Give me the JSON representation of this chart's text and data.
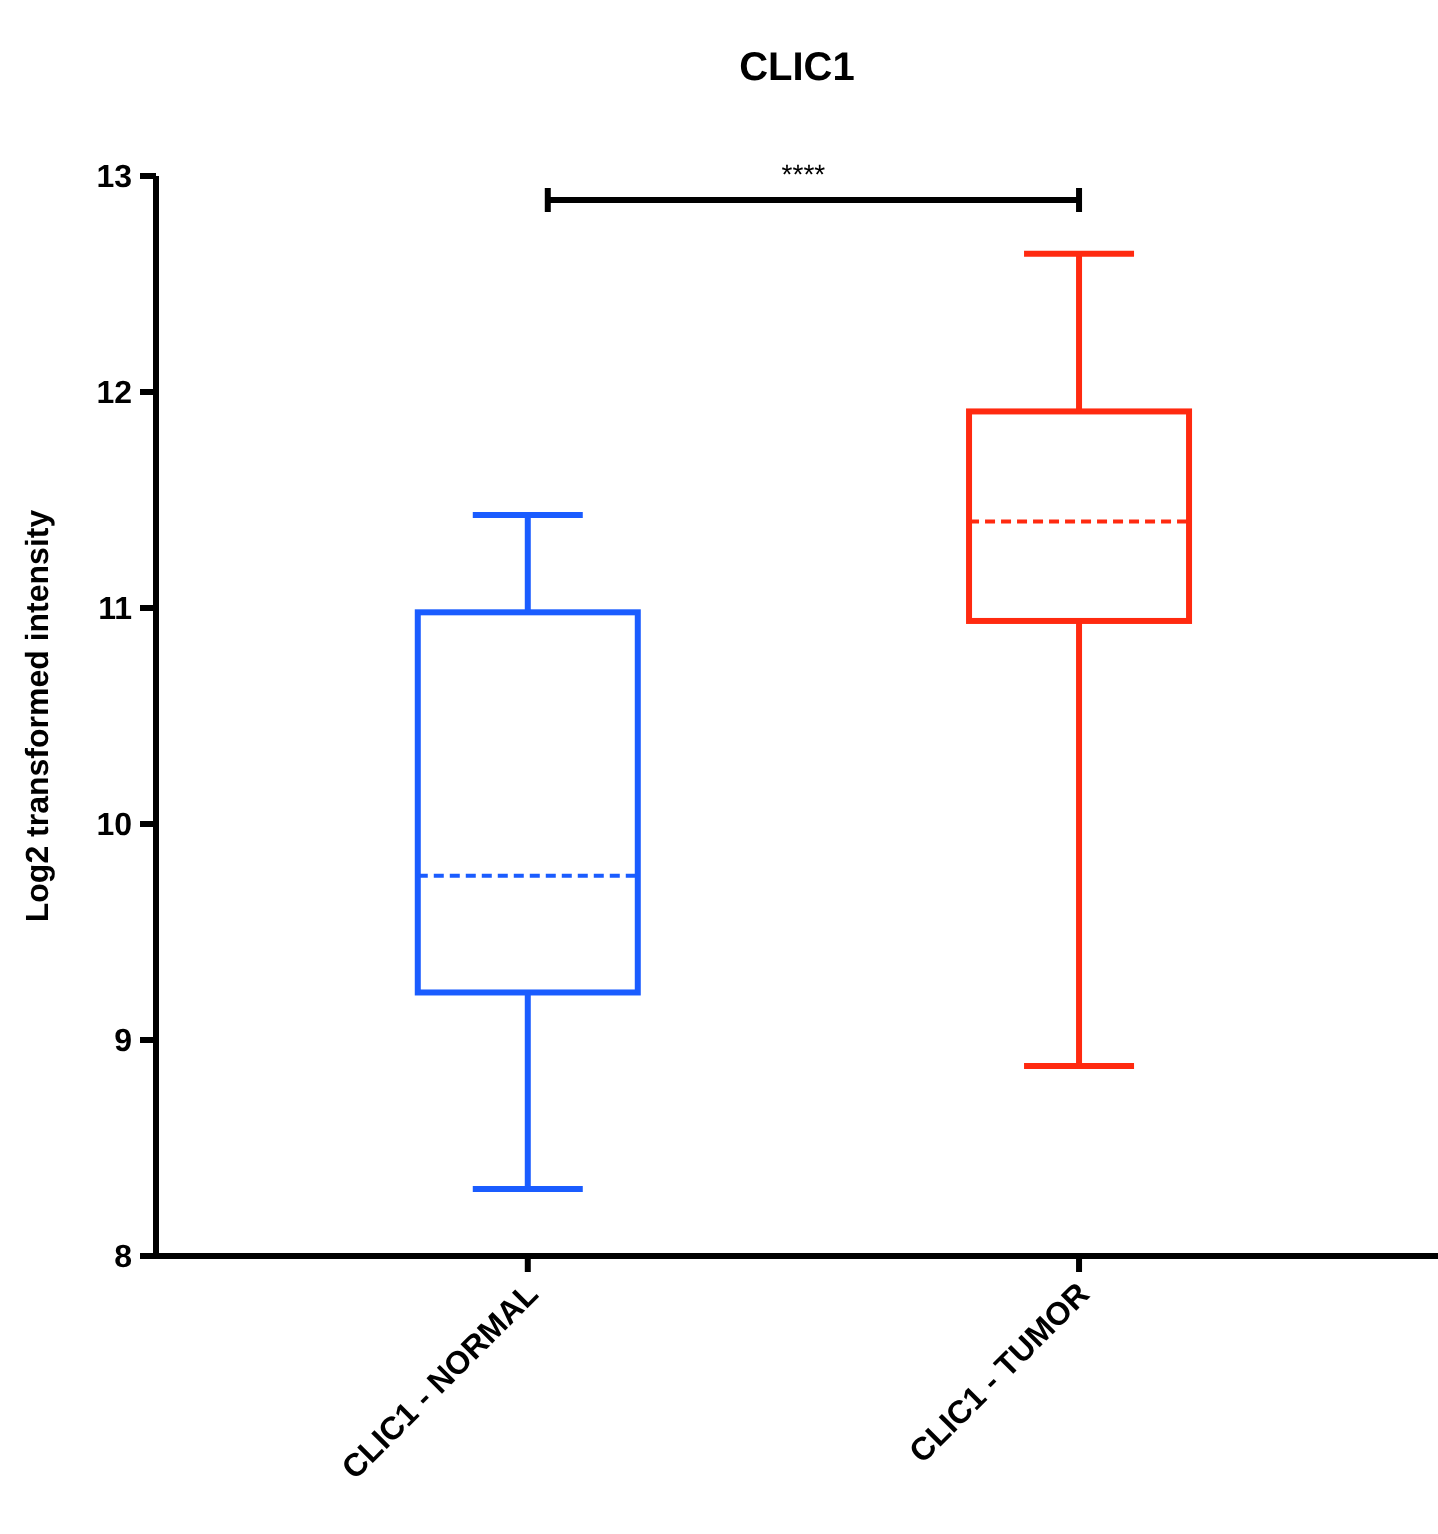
{
  "chart_data": {
    "type": "box",
    "title": "CLIC1",
    "ylabel": "Log2 transformed intensity",
    "categories": [
      "CLIC1 - NORMAL",
      "CLIC1 - TUMOR"
    ],
    "colors": [
      "#1a5cff",
      "#ff2a10"
    ],
    "boxes": [
      {
        "low": 8.31,
        "q1": 9.22,
        "median": 9.76,
        "q3": 10.98,
        "high": 11.43
      },
      {
        "low": 8.88,
        "q1": 10.94,
        "median": 11.4,
        "q3": 11.91,
        "high": 12.64
      }
    ],
    "ylim": [
      8,
      13
    ],
    "yticks": [
      8,
      9,
      10,
      11,
      12,
      13
    ],
    "grid": false,
    "annotations": [
      "****"
    ]
  }
}
